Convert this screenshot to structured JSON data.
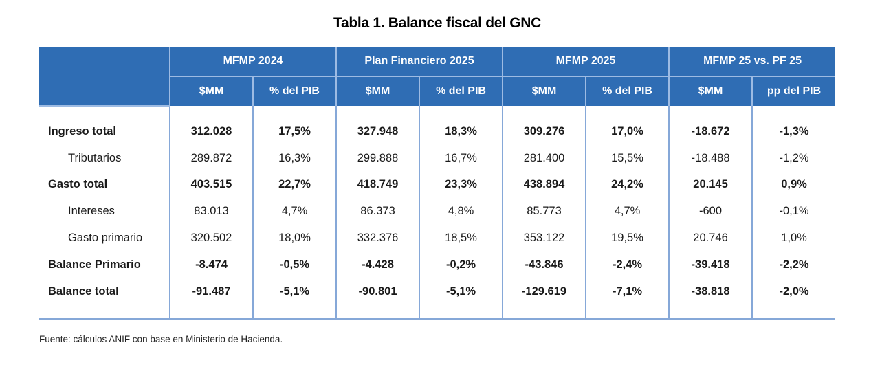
{
  "title": "Tabla 1. Balance fiscal del GNC",
  "table": {
    "groups": [
      "MFMP 2024",
      "Plan Financiero 2025",
      "MFMP 2025",
      "MFMP 25 vs. PF 25"
    ],
    "subheaders": [
      "$MM",
      "% del PIB",
      "$MM",
      "% del PIB",
      "$MM",
      "% del PIB",
      "$MM",
      "pp del PIB"
    ],
    "rows": [
      {
        "label": "Ingreso total",
        "bold": true,
        "sub": false,
        "values": [
          "312.028",
          "17,5%",
          "327.948",
          "18,3%",
          "309.276",
          "17,0%",
          "-18.672",
          "-1,3%"
        ]
      },
      {
        "label": "Tributarios",
        "bold": false,
        "sub": true,
        "values": [
          "289.872",
          "16,3%",
          "299.888",
          "16,7%",
          "281.400",
          "15,5%",
          "-18.488",
          "-1,2%"
        ]
      },
      {
        "label": "Gasto total",
        "bold": true,
        "sub": false,
        "values": [
          "403.515",
          "22,7%",
          "418.749",
          "23,3%",
          "438.894",
          "24,2%",
          "20.145",
          "0,9%"
        ]
      },
      {
        "label": "Intereses",
        "bold": false,
        "sub": true,
        "values": [
          "83.013",
          "4,7%",
          "86.373",
          "4,8%",
          "85.773",
          "4,7%",
          "-600",
          "-0,1%"
        ]
      },
      {
        "label": "Gasto primario",
        "bold": false,
        "sub": true,
        "values": [
          "320.502",
          "18,0%",
          "332.376",
          "18,5%",
          "353.122",
          "19,5%",
          "20.746",
          "1,0%"
        ]
      },
      {
        "label": "Balance Primario",
        "bold": true,
        "sub": false,
        "values": [
          "-8.474",
          "-0,5%",
          "-4.428",
          "-0,2%",
          "-43.846",
          "-2,4%",
          "-39.418",
          "-2,2%"
        ]
      },
      {
        "label": "Balance total",
        "bold": true,
        "sub": false,
        "values": [
          "-91.487",
          "-5,1%",
          "-90.801",
          "-5,1%",
          "-129.619",
          "-7,1%",
          "-38.818",
          "-2,0%"
        ]
      }
    ]
  },
  "source": "Fuente: cálculos ANIF con base en Ministerio de Hacienda.",
  "colors": {
    "header_bg": "#2f6db4",
    "rule": "#86a8d8"
  }
}
